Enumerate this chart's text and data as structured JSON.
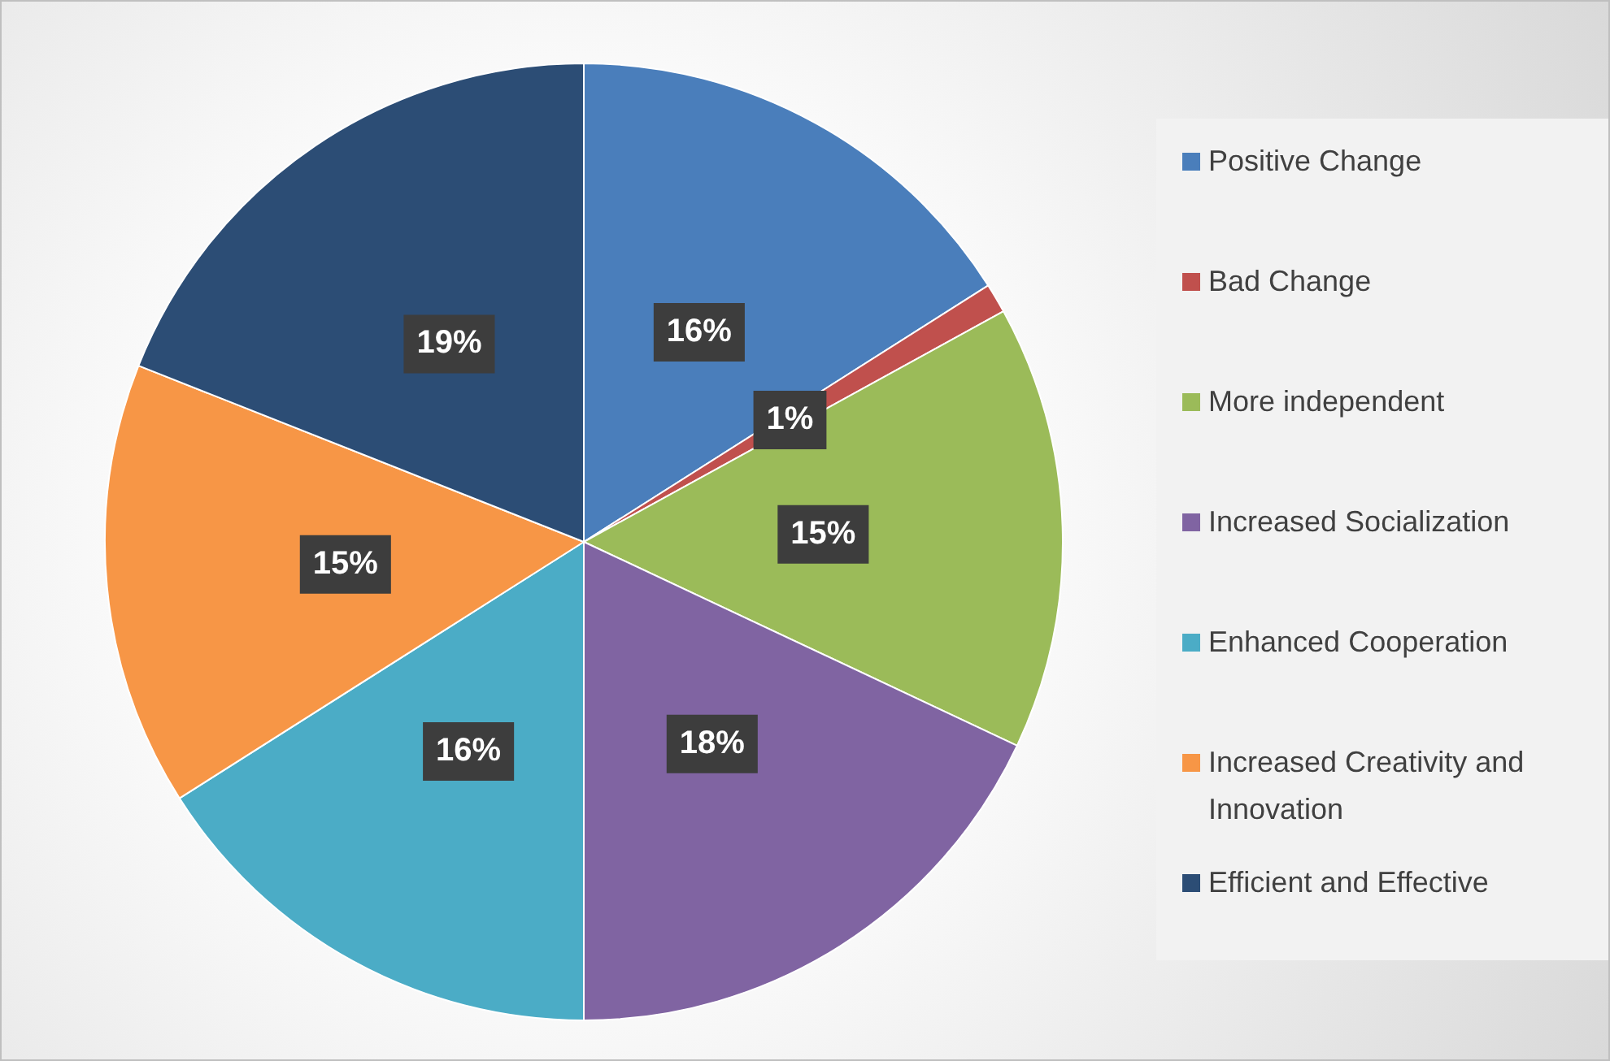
{
  "chart_data": {
    "type": "pie",
    "categories": [
      "Positive Change",
      "Bad Change",
      "More independent",
      "Increased Socialization",
      "Enhanced Cooperation",
      "Increased Creativity and Innovation",
      "Efficient and Effective"
    ],
    "values": [
      16,
      1,
      15,
      18,
      16,
      15,
      19
    ],
    "colors": [
      "#4a7ebb",
      "#c0504d",
      "#9bbb59",
      "#8064a2",
      "#4bacc6",
      "#f79646",
      "#2c4d75"
    ],
    "value_labels": [
      "16%",
      "1%",
      "15%",
      "18%",
      "16%",
      "15%",
      "19%"
    ],
    "legend": "right"
  }
}
